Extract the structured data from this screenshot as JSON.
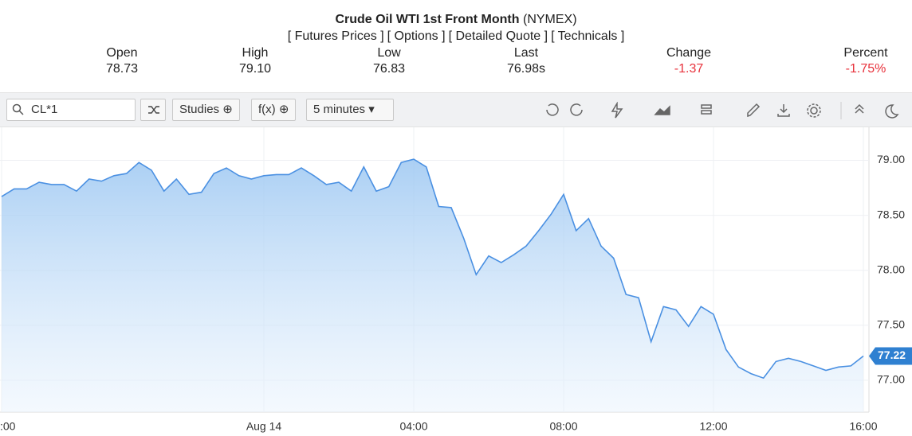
{
  "header": {
    "title": "Crude Oil WTI 1st Front Month",
    "exchange": "(NYMEX)",
    "links": [
      "[ Futures Prices ]",
      "[ Options ]",
      "[ Detailed Quote ]",
      "[ Technicals ]"
    ]
  },
  "quote": [
    {
      "label": "Open",
      "value": "78.73"
    },
    {
      "label": "High",
      "value": "79.10"
    },
    {
      "label": "Low",
      "value": "76.83"
    },
    {
      "label": "Last",
      "value": "76.98s"
    },
    {
      "label": "Change",
      "value": "-1.37"
    },
    {
      "label": "Percent",
      "value": "-1.75%"
    }
  ],
  "toolbar": {
    "symbol": "CL*1",
    "studies": "Studies",
    "fx": "f(x)",
    "interval": "5 minutes"
  },
  "chart_data": {
    "type": "area",
    "categories": [
      ":00",
      null,
      null,
      null,
      null,
      null,
      null,
      null,
      null,
      null,
      null,
      null,
      null,
      null,
      null,
      null,
      null,
      null,
      null,
      null,
      null,
      "Aug 14",
      null,
      null,
      null,
      null,
      null,
      null,
      null,
      null,
      null,
      null,
      null,
      "04:00",
      null,
      null,
      null,
      null,
      null,
      null,
      null,
      null,
      null,
      null,
      null,
      "08:00",
      null,
      null,
      null,
      null,
      null,
      null,
      null,
      null,
      null,
      null,
      null,
      "12:00",
      null,
      null,
      null,
      null,
      null,
      null,
      null,
      null,
      null,
      null,
      null,
      "16:00"
    ],
    "series": [
      {
        "name": "CL*1",
        "color": "#4a90e2",
        "values": [
          78.67,
          78.74,
          78.74,
          78.8,
          78.78,
          78.78,
          78.72,
          78.83,
          78.81,
          78.86,
          78.88,
          78.98,
          78.91,
          78.72,
          78.83,
          78.69,
          78.71,
          78.88,
          78.93,
          78.86,
          78.83,
          78.86,
          78.87,
          78.87,
          78.93,
          78.86,
          78.78,
          78.8,
          78.72,
          78.94,
          78.72,
          78.76,
          78.98,
          79.01,
          78.94,
          78.58,
          78.57,
          78.29,
          77.96,
          78.13,
          78.07,
          78.14,
          78.22,
          78.36,
          78.51,
          78.69,
          78.36,
          78.47,
          78.22,
          78.11,
          77.78,
          77.75,
          77.35,
          77.67,
          77.64,
          77.49,
          77.67,
          77.6,
          77.28,
          77.12,
          77.06,
          77.02,
          77.17,
          77.2,
          77.17,
          77.13,
          77.09,
          77.12,
          77.13,
          77.22
        ]
      }
    ],
    "ylim": [
      76.71,
      79.3
    ],
    "yticks": [
      {
        "value": 77,
        "label": "77.00"
      },
      {
        "value": 77.5,
        "label": "77.50"
      },
      {
        "value": 78,
        "label": "78.00"
      },
      {
        "value": 78.5,
        "label": "78.50"
      },
      {
        "value": 79,
        "label": "79.00"
      }
    ],
    "current_price": {
      "value": 77.22,
      "label": "77.22"
    },
    "grid": true
  }
}
